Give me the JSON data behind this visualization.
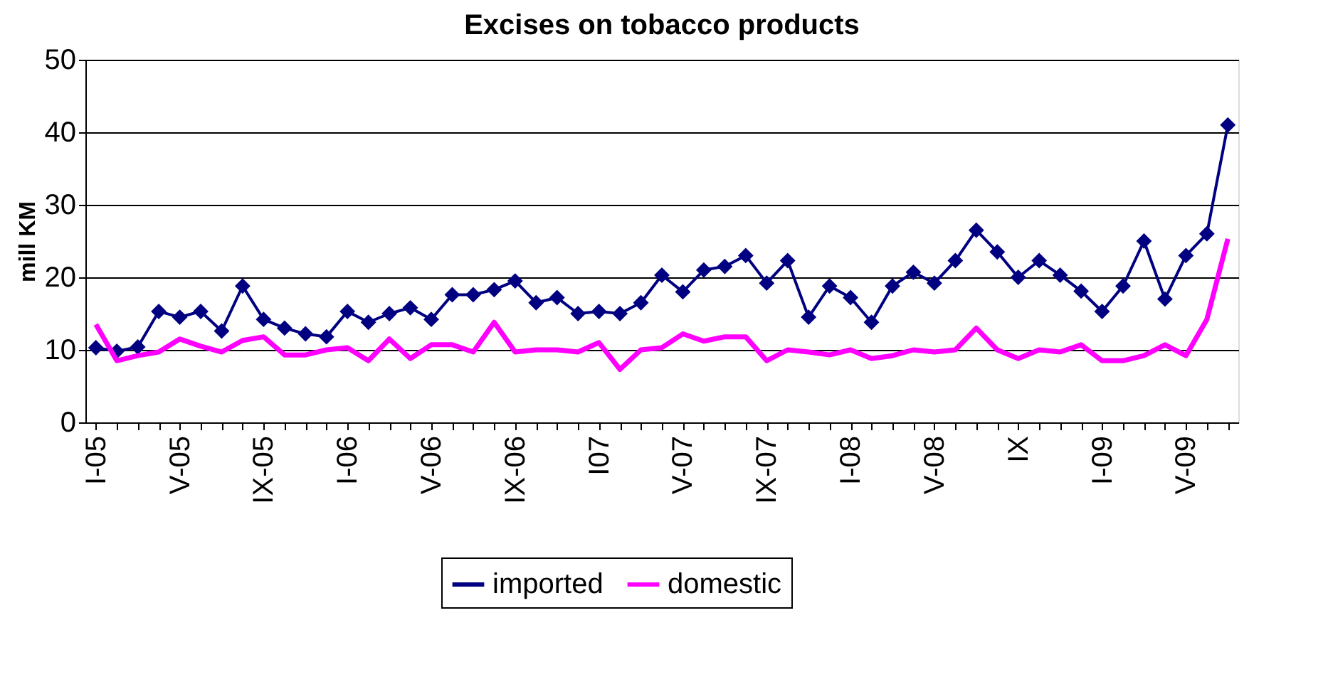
{
  "chart_data": {
    "type": "line",
    "title": "Excises on tobacco products",
    "ylabel": "mill KM",
    "categories": [
      "I-05",
      null,
      null,
      null,
      "V-05",
      null,
      null,
      null,
      "IX-05",
      null,
      null,
      null,
      "I-06",
      null,
      null,
      null,
      "V-06",
      null,
      null,
      null,
      "IX-06",
      null,
      null,
      null,
      "I07",
      null,
      null,
      null,
      "V-07",
      null,
      null,
      null,
      "IX-07",
      null,
      null,
      null,
      "I-08",
      null,
      null,
      null,
      "V-08",
      null,
      null,
      null,
      "IX",
      null,
      null,
      null,
      "I-09",
      null,
      null,
      null,
      "V-09",
      null,
      null
    ],
    "series": [
      {
        "name": "imported",
        "color": "#000080",
        "marker": "diamond",
        "values": [
          10.3,
          9.8,
          10.4,
          15.3,
          14.5,
          15.3,
          12.6,
          18.8,
          14.2,
          13.0,
          12.2,
          11.8,
          15.3,
          13.8,
          15.0,
          15.8,
          14.2,
          17.6,
          17.6,
          18.3,
          19.5,
          16.5,
          17.2,
          15.0,
          15.3,
          15.0,
          16.5,
          20.3,
          18.0,
          21.0,
          21.5,
          23.0,
          19.2,
          22.3,
          14.5,
          18.8,
          17.2,
          13.8,
          18.8,
          20.7,
          19.2,
          22.3,
          26.5,
          23.5,
          20.0,
          22.3,
          20.3,
          18.1,
          15.3,
          18.8,
          25.0,
          17.0,
          23.0,
          26.0,
          41.0
        ]
      },
      {
        "name": "domestic",
        "color": "#ff00ff",
        "marker": "none",
        "values": [
          13.5,
          8.5,
          9.2,
          9.7,
          11.5,
          10.5,
          9.7,
          11.3,
          11.8,
          9.3,
          9.3,
          10.0,
          10.3,
          8.5,
          11.5,
          8.8,
          10.7,
          10.7,
          9.7,
          13.8,
          9.7,
          10.0,
          10.0,
          9.7,
          11.0,
          7.3,
          10.0,
          10.3,
          12.2,
          11.2,
          11.8,
          11.8,
          8.5,
          10.0,
          9.7,
          9.3,
          10.0,
          8.8,
          9.2,
          10.0,
          9.7,
          10.0,
          13.0,
          10.0,
          8.8,
          10.0,
          9.7,
          10.7,
          8.5,
          8.5,
          9.2,
          10.7,
          9.2,
          14.2,
          25.3
        ]
      }
    ],
    "ylim": [
      0,
      50
    ],
    "yticks": [
      0,
      10,
      20,
      30,
      40,
      50
    ],
    "grid": "y",
    "legend": "bottom"
  }
}
